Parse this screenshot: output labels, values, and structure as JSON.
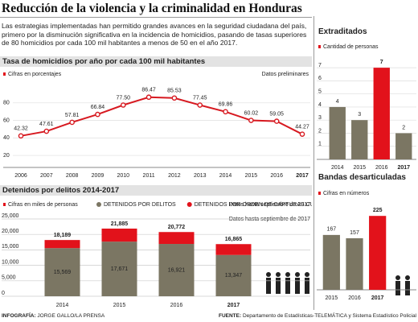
{
  "title": "Reducción de la violencia y la criminalidad en Honduras",
  "intro": "Las estrategias implementadas han permitido grandes avances en la seguridad ciudadana del país, primero por la disminución significativa en la incidencia de homicidios, pasando de tasas superiores de 80 homicidios por cada 100 mil habitantes a menos de 50 en el año 2017.",
  "credit_label": "INFOGRAFÍA:",
  "credit": "JORGE GALLO/LA PRENSA",
  "source_label": "FUENTE:",
  "source": "Departamento de Estadísticas-TELEMÁTICA y Sistema Estadístico Policial",
  "chart_data": [
    {
      "type": "line",
      "title": "Tasa de homicidios por año por cada 100 mil habitantes",
      "y_label": "Cifras en porcentajes",
      "note": "Datos preliminares",
      "categories": [
        "2006",
        "2007",
        "2008",
        "2009",
        "2010",
        "2011",
        "2012",
        "2013",
        "2014",
        "2015",
        "2016",
        "2017"
      ],
      "values": [
        42.32,
        47.61,
        57.81,
        66.84,
        77.5,
        86.47,
        85.53,
        77.45,
        69.86,
        60.02,
        59.05,
        44.27
      ],
      "value_labels": [
        "42.32",
        "47.61",
        "57.81",
        "66.84",
        "77.50",
        "86.47",
        "85.53",
        "77.45",
        "69.86",
        "60.02",
        "59.05",
        "44.27"
      ],
      "color": "#d71920",
      "ylim": [
        10,
        100
      ],
      "yticks": [
        20,
        40,
        60,
        80
      ],
      "grid": true
    },
    {
      "type": "stacked_bar",
      "title": "Detenidos por delitos 2014-2017",
      "y_label": "Cifras en miles de personas",
      "note": "Datos hasta septiembre de 2017",
      "categories": [
        "2014",
        "2015",
        "2016",
        "2017"
      ],
      "series": [
        {
          "name": "DETENIDOS POR DELITOS",
          "color": "#7b7663",
          "values": [
            15569,
            17671,
            16921,
            13347
          ],
          "value_labels": [
            "15,569",
            "17,671",
            "16,921",
            "13,347"
          ]
        },
        {
          "name": "DETENIDOS POR ORDEN DE CAPTURAS CUMPLIDAS",
          "color": "#e2121b",
          "values": [
            2620,
            4214,
            3851,
            3518
          ]
        }
      ],
      "totals": [
        18189,
        21885,
        20772,
        16865
      ],
      "total_labels": [
        "18,189",
        "21,885",
        "20,772",
        "16,865"
      ],
      "ylim": [
        0,
        25000
      ],
      "yticks": [
        0,
        {
          "value": 5000,
          "label": "5,000"
        },
        {
          "value": 10000,
          "label": "10,000"
        },
        {
          "value": 15000,
          "label": "15,000"
        },
        {
          "value": 20000,
          "label": "20,000"
        },
        {
          "value": 25000,
          "label": "25,000"
        }
      ],
      "grid": true
    },
    {
      "type": "bar",
      "title": "Extraditados",
      "y_label": "Cantidad de personas",
      "categories": [
        "2014",
        "2015",
        "2016",
        "2017"
      ],
      "values": [
        4,
        3,
        7,
        2
      ],
      "colors": [
        "#7b7663",
        "#7b7663",
        "#e2121b",
        "#7b7663"
      ],
      "ylim": [
        0,
        7.5
      ],
      "yticks": [
        0,
        1,
        2,
        3,
        4,
        5,
        6,
        7
      ],
      "grid": true
    },
    {
      "type": "bar",
      "title": "Bandas desarticuladas",
      "y_label": "Cifras en números",
      "categories": [
        "2015",
        "2016",
        "2017"
      ],
      "values": [
        167,
        157,
        225
      ],
      "colors": [
        "#7b7663",
        "#7b7663",
        "#e2121b"
      ],
      "ylim": [
        0,
        250
      ]
    }
  ]
}
